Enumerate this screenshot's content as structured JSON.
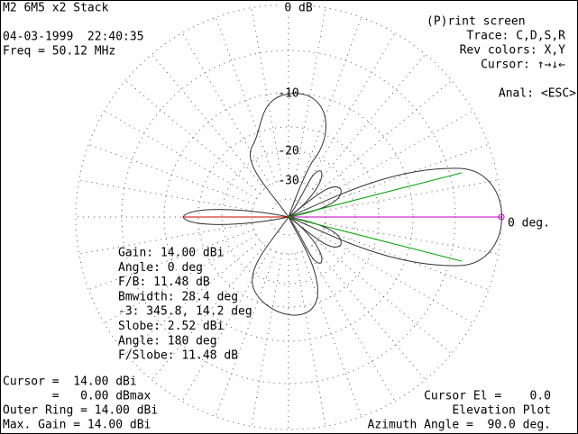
{
  "header": {
    "title": "M2 6M5 x2 Stack",
    "date_time": "04-03-1999  22:40:35",
    "frequency": "Freq = 50.12 MHz"
  },
  "menu": {
    "print": "(P)rint screen",
    "trace": "Trace: C,D,S,R",
    "rev_colors": "Rev colors: X,Y",
    "cursor": "Cursor: ↑→↓←",
    "anal": "Anal: <ESC>"
  },
  "plot": {
    "ring_labels": [
      "0 dB",
      "-10",
      "-20",
      "-30"
    ],
    "cursor_label": "0 deg."
  },
  "info": [
    "Gain: 14.00 dBi",
    "Angle: 0 deg",
    "F/B: 11.48 dB",
    "Bmwidth: 28.4 deg",
    "-3: 345.8, 14.2 deg",
    "Slobe: 2.52 dBi",
    "Angle: 180 deg",
    "F/Slobe: 11.48 dB"
  ],
  "footer_left": [
    "Cursor =  14.00 dBi",
    "       =   0.00 dBmax",
    "Outer Ring = 14.00 dBi",
    "Max. Gain = 14.00 dBi"
  ],
  "footer_right": [
    "Cursor El =    0.0",
    "Elevation Plot",
    "Azimuth Angle =  90.0 deg."
  ]
}
